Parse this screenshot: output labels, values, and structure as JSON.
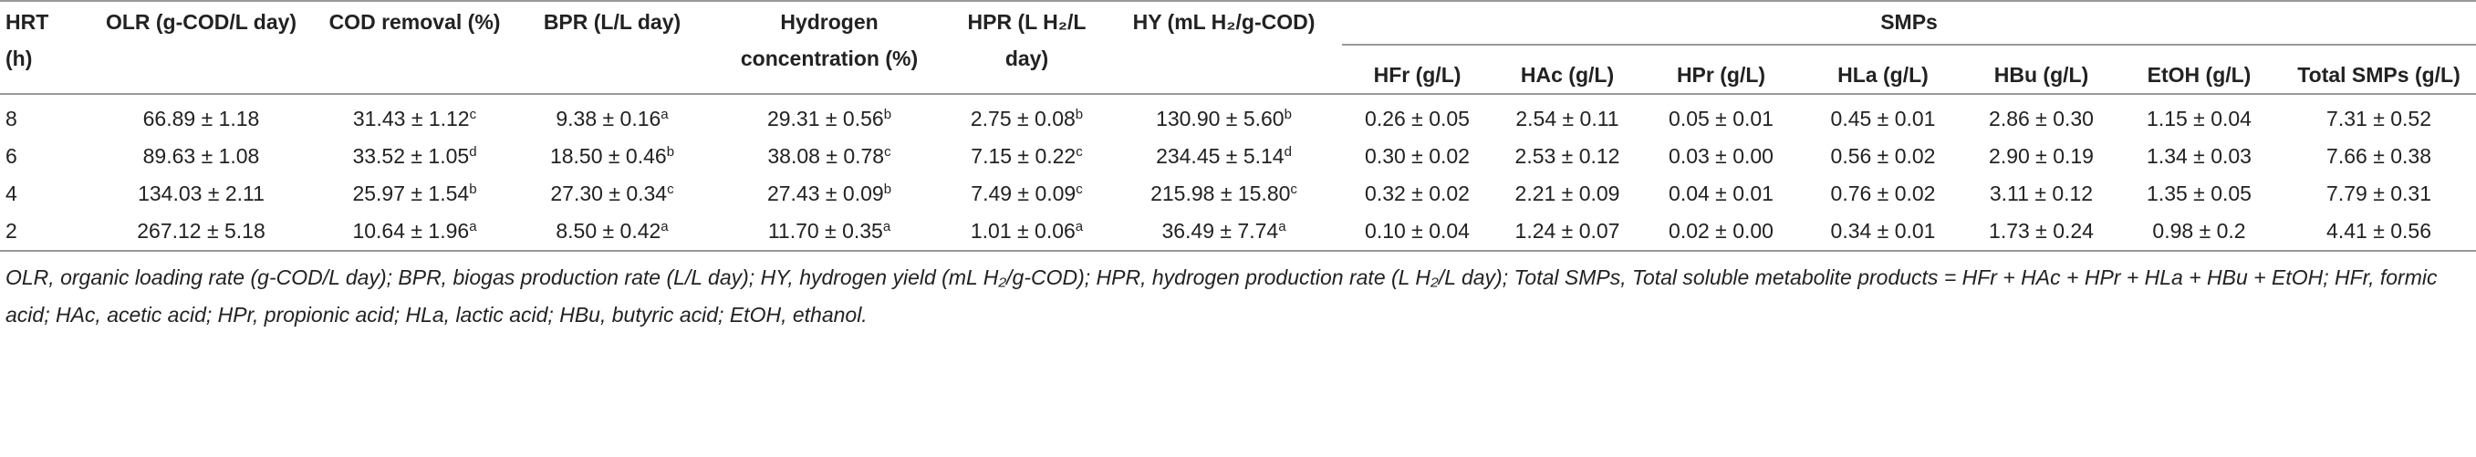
{
  "table": {
    "columns": [
      "HRT (h)",
      "OLR (g-COD/L day)",
      "COD removal (%)",
      "BPR (L/L day)",
      "Hydrogen concentration (%)",
      "HPR (L H₂/L day)",
      "HY (mL H₂/g-COD)"
    ],
    "group": "SMPs",
    "sub_columns": [
      "HFr (g/L)",
      "HAc (g/L)",
      "HPr (g/L)",
      "HLa (g/L)",
      "HBu (g/L)",
      "EtOH (g/L)",
      "Total SMPs (g/L)"
    ],
    "rows": [
      [
        "8",
        "66.89 ± 1.18",
        {
          "text": "31.43 ± 1.12",
          "sup": "c"
        },
        {
          "text": "9.38 ± 0.16",
          "sup": "a"
        },
        {
          "text": "29.31 ± 0.56",
          "sup": "b"
        },
        {
          "text": "2.75 ± 0.08",
          "sup": "b"
        },
        {
          "text": "130.90 ± 5.60",
          "sup": "b"
        },
        "0.26 ± 0.05",
        "2.54 ± 0.11",
        "0.05 ± 0.01",
        "0.45 ± 0.01",
        "2.86 ± 0.30",
        "1.15 ± 0.04",
        "7.31 ± 0.52"
      ],
      [
        "6",
        "89.63 ± 1.08",
        {
          "text": "33.52 ± 1.05",
          "sup": "d"
        },
        {
          "text": "18.50 ± 0.46",
          "sup": "b"
        },
        {
          "text": "38.08 ± 0.78",
          "sup": "c"
        },
        {
          "text": "7.15 ± 0.22",
          "sup": "c"
        },
        {
          "text": "234.45 ± 5.14",
          "sup": "d"
        },
        "0.30 ± 0.02",
        "2.53 ± 0.12",
        "0.03 ± 0.00",
        "0.56 ± 0.02",
        "2.90 ± 0.19",
        "1.34 ± 0.03",
        "7.66 ± 0.38"
      ],
      [
        "4",
        "134.03 ± 2.11",
        {
          "text": "25.97 ± 1.54",
          "sup": "b"
        },
        {
          "text": "27.30 ± 0.34",
          "sup": "c"
        },
        {
          "text": "27.43 ± 0.09",
          "sup": "b"
        },
        {
          "text": "7.49 ± 0.09",
          "sup": "c"
        },
        {
          "text": "215.98 ± 15.80",
          "sup": "c"
        },
        "0.32 ± 0.02",
        "2.21 ± 0.09",
        "0.04 ± 0.01",
        "0.76 ± 0.02",
        "3.11 ± 0.12",
        "1.35 ± 0.05",
        "7.79 ± 0.31"
      ],
      [
        "2",
        "267.12 ± 5.18",
        {
          "text": "10.64 ± 1.96",
          "sup": "a"
        },
        {
          "text": "8.50 ± 0.42",
          "sup": "a"
        },
        {
          "text": "11.70 ± 0.35",
          "sup": "a"
        },
        {
          "text": "1.01 ± 0.06",
          "sup": "a"
        },
        {
          "text": "36.49 ± 7.74",
          "sup": "a"
        },
        "0.10 ± 0.04",
        "1.24 ± 0.07",
        "0.02 ± 0.00",
        "0.34 ± 0.01",
        "1.73 ± 0.24",
        "0.98 ± 0.2",
        "4.41 ± 0.56"
      ]
    ],
    "footnote": "OLR, organic loading rate (g-COD/L day); BPR, biogas production rate (L/L day); HY, hydrogen yield (mL H₂/g-COD); HPR, hydrogen production rate (L H₂/L day); Total SMPs, Total soluble metabolite products = HFr + HAc + HPr + HLa + HBu + EtOH; HFr, formic acid; HAc, acetic acid; HPr, propionic acid; HLa, lactic acid; HBu, butyric acid; EtOH, ethanol."
  }
}
